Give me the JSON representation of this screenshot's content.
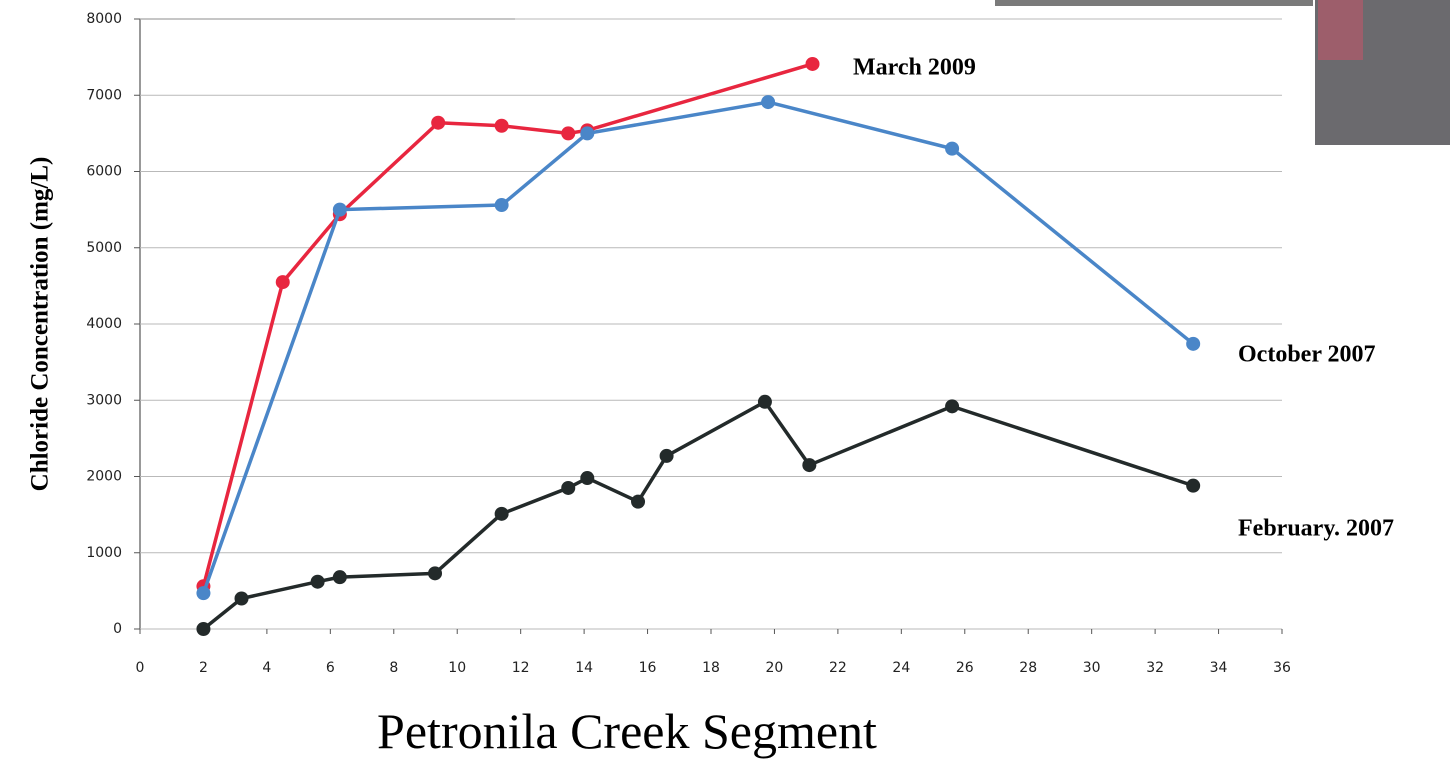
{
  "chart_data": {
    "type": "line",
    "y_label": "Chloride Concentration (mg/L)",
    "x_label": "Petronila Creek Segment",
    "xlim": [
      0,
      36
    ],
    "xticks": [
      0,
      2,
      4,
      6,
      8,
      10,
      12,
      14,
      16,
      18,
      20,
      22,
      24,
      26,
      28,
      30,
      32,
      34,
      36
    ],
    "ylim": [
      0,
      8000
    ],
    "yticks": [
      0,
      1000,
      2000,
      3000,
      4000,
      5000,
      6000,
      7000,
      8000
    ],
    "grid": true,
    "series": [
      {
        "name": "March 2009",
        "color": "#e8263f",
        "x": [
          2,
          4.5,
          6.3,
          9.4,
          11.4,
          13.5,
          14.1,
          21.2
        ],
        "values": [
          560,
          4550,
          5440,
          6640,
          6600,
          6500,
          6540,
          7410
        ]
      },
      {
        "name": "October 2007",
        "color": "#4a86c8",
        "x": [
          2,
          6.3,
          11.4,
          14.1,
          19.8,
          25.6,
          33.2
        ],
        "values": [
          470,
          5500,
          5560,
          6500,
          6910,
          6300,
          3740
        ]
      },
      {
        "name": "February. 2007",
        "color": "#232a2a",
        "x": [
          2,
          3.2,
          5.6,
          6.3,
          9.3,
          11.4,
          13.5,
          14.1,
          15.7,
          16.6,
          19.7,
          21.1,
          25.6,
          33.2
        ],
        "values": [
          0,
          400,
          620,
          680,
          730,
          1510,
          1850,
          1980,
          1670,
          2270,
          2980,
          2150,
          2920,
          1880
        ]
      }
    ]
  }
}
